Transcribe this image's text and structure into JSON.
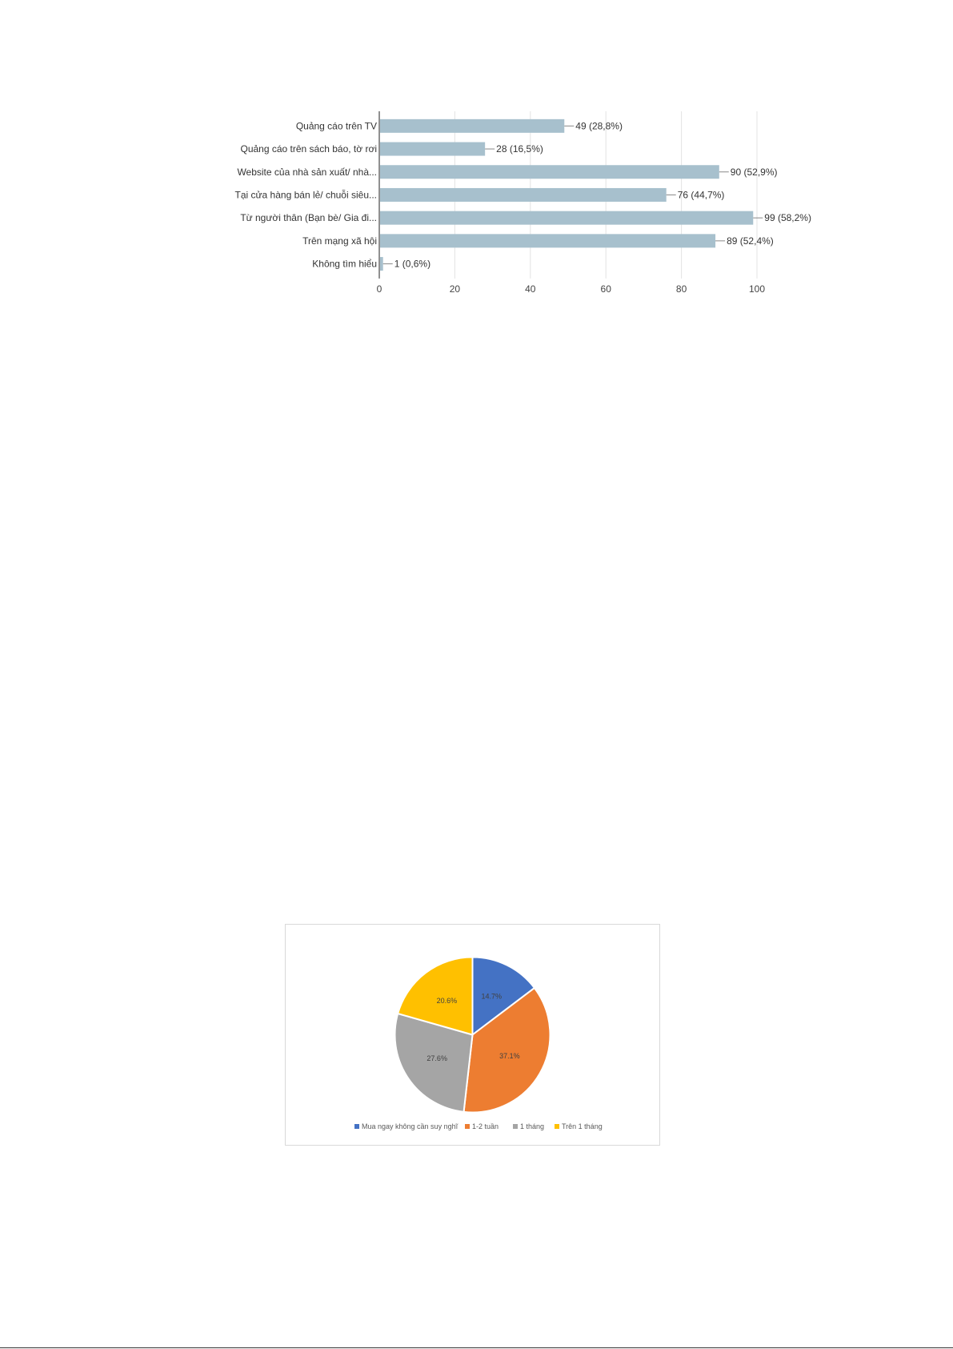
{
  "chart_data": [
    {
      "type": "bar",
      "orientation": "horizontal",
      "categories": [
        "Quảng cáo trên TV",
        "Quảng cáo trên sách báo, tờ rơi",
        "Website của nhà sản xuất/ nhà...",
        "Tại cửa hàng bán lẻ/ chuỗi siêu...",
        "Từ người thân (Bạn bè/ Gia đi...",
        "Trên mạng xã hội",
        "Không tìm hiểu"
      ],
      "values": [
        49,
        28,
        90,
        76,
        99,
        89,
        1
      ],
      "data_labels": [
        "49 (28,8%)",
        "28 (16,5%)",
        "90 (52,9%)",
        "76 (44,7%)",
        "99 (58,2%)",
        "89 (52,4%)",
        "1 (0,6%)"
      ],
      "xlim": [
        0,
        100
      ],
      "x_ticks": [
        0,
        20,
        40,
        60,
        80,
        100
      ],
      "grid": "vertical",
      "color": "#a7c0cd"
    },
    {
      "type": "pie",
      "categories": [
        "Mua ngay không cần suy nghĩ",
        "1-2 tuần",
        "1 tháng",
        "Trên 1 tháng"
      ],
      "values": [
        14.7,
        37.1,
        27.6,
        20.6
      ],
      "data_labels": [
        "14.7%",
        "37.1%",
        "27.6%",
        "20.6%"
      ],
      "colors": [
        "#4472c4",
        "#ed7d31",
        "#a5a5a5",
        "#ffc000"
      ],
      "legend": "bottom"
    }
  ]
}
